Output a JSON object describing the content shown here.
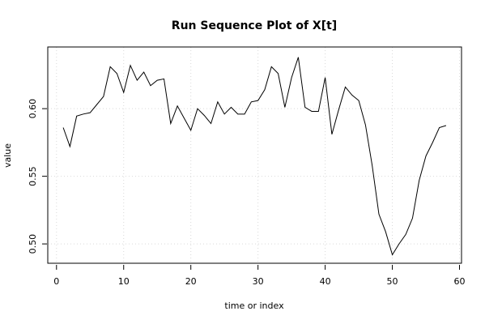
{
  "chart_data": {
    "type": "line",
    "title": "Run Sequence Plot of X[t]",
    "xlabel": "time or index",
    "ylabel": "value",
    "xlim": [
      -1.3,
      60.3
    ],
    "ylim": [
      0.4857,
      0.6456
    ],
    "xticks": [
      0,
      10,
      20,
      30,
      40,
      50,
      60
    ],
    "yticks": [
      0.5,
      0.55,
      0.6
    ],
    "xtick_labels": [
      "0",
      "10",
      "20",
      "30",
      "40",
      "50",
      "60"
    ],
    "ytick_labels": [
      "0.50",
      "0.55",
      "0.60"
    ],
    "grid": true,
    "series": [
      {
        "x": [
          1,
          2,
          3,
          4,
          5,
          6,
          7,
          8,
          9,
          10,
          11,
          12,
          13,
          14,
          15,
          16,
          17,
          18,
          19,
          20,
          21,
          22,
          23,
          24,
          25,
          26,
          27,
          28,
          29,
          30,
          31,
          32,
          33,
          34,
          35,
          36,
          37,
          38,
          39,
          40,
          41,
          42,
          43,
          44,
          45,
          46,
          47,
          48,
          49,
          50,
          51,
          52,
          53,
          54,
          55,
          56,
          57,
          58
        ],
        "y": [
          0.586,
          0.572,
          0.5945,
          0.596,
          0.597,
          0.603,
          0.609,
          0.631,
          0.626,
          0.612,
          0.632,
          0.621,
          0.627,
          0.617,
          0.621,
          0.622,
          0.589,
          0.602,
          0.593,
          0.584,
          0.6,
          0.595,
          0.589,
          0.605,
          0.596,
          0.601,
          0.596,
          0.596,
          0.605,
          0.606,
          0.614,
          0.631,
          0.626,
          0.601,
          0.623,
          0.638,
          0.601,
          0.598,
          0.598,
          0.623,
          0.581,
          0.599,
          0.616,
          0.61,
          0.606,
          0.588,
          0.558,
          0.522,
          0.509,
          0.492,
          0.5,
          0.507,
          0.519,
          0.547,
          0.565,
          0.575,
          0.586,
          0.5875
        ]
      }
    ]
  }
}
